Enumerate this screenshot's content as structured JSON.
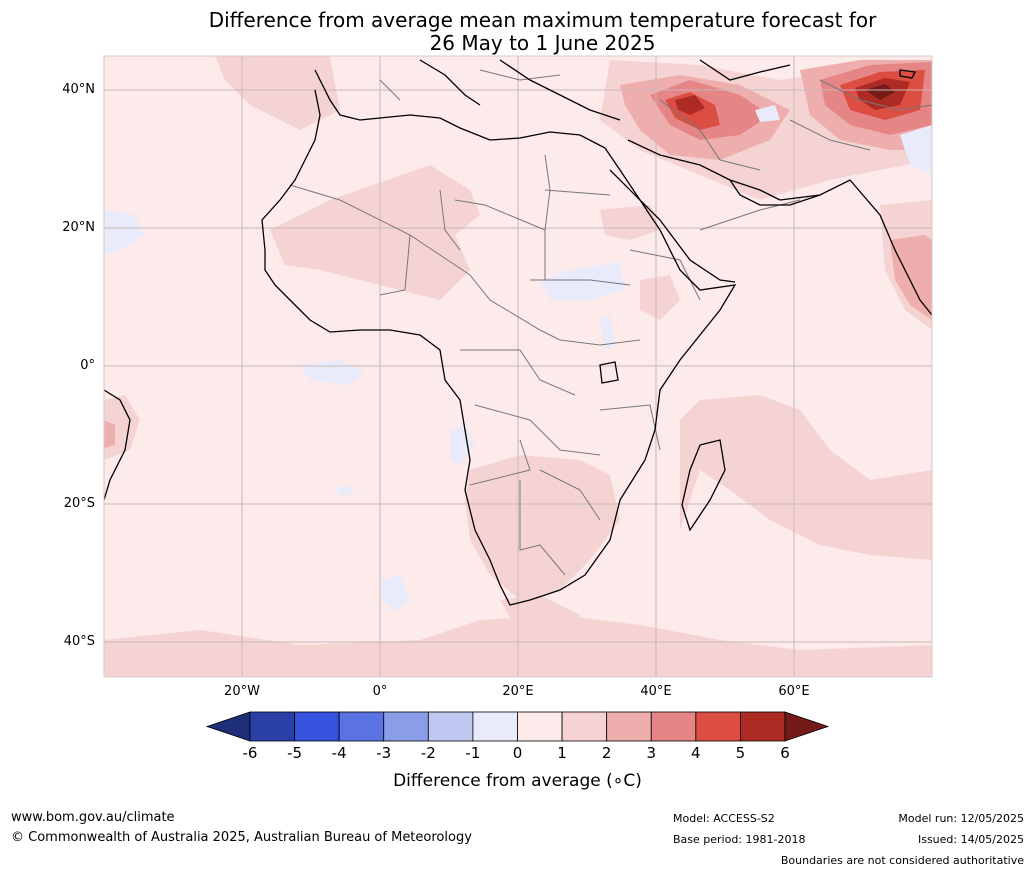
{
  "title_line1": "Difference from average mean maximum temperature forecast for",
  "title_line2": "26 May to 1 June 2025",
  "map": {
    "lat_labels": [
      "40°N",
      "20°N",
      "0°",
      "20°S",
      "40°S"
    ],
    "lon_labels": [
      "20°W",
      "0°",
      "20°E",
      "40°E",
      "60°E"
    ]
  },
  "colorbar": {
    "label": "Difference from average (∘C)",
    "ticks": [
      "-6",
      "-5",
      "-4",
      "-3",
      "-2",
      "-1",
      "0",
      "1",
      "2",
      "3",
      "4",
      "5",
      "6"
    ],
    "colors": [
      "#2a3fa8",
      "#3452dd",
      "#5b73e2",
      "#8a9de8",
      "#c0c8f2",
      "#e9ebfa",
      "#fdeaea",
      "#f6d3d3",
      "#eeaeae",
      "#e58585",
      "#dc4d42",
      "#ae2b25"
    ],
    "low_color": "#1e2e78",
    "high_color": "#741a18"
  },
  "footer": {
    "url": "www.bom.gov.au/climate",
    "copyright": "© Commonwealth of Australia 2025, Australian Bureau of Meteorology",
    "model": "Model: ACCESS-S2",
    "base_period": "Base period: 1981-2018",
    "model_run": "Model run: 12/05/2025",
    "issued": "Issued: 14/05/2025",
    "boundaries": "Boundaries are not considered authoritative"
  }
}
